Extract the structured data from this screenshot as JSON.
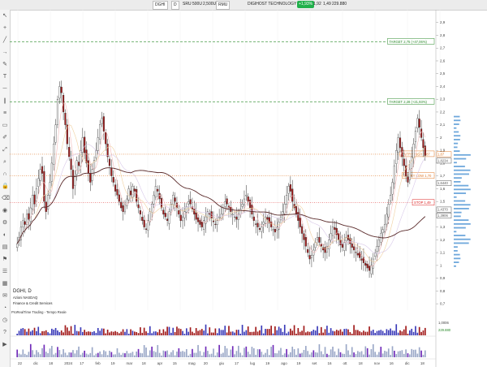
{
  "toolbar_top": {
    "symbol": "DGHI",
    "interval": "D",
    "fields": [
      "SRU",
      "500U",
      "2,500U"
    ],
    "exchange": "RMU",
    "company": "DIGIHOST TECHNOLOGY INC.",
    "change_pct": "+1,93%",
    "quote": [
      "1,92",
      "1,49",
      "229.880"
    ]
  },
  "left_tools": [
    "cursor-icon",
    "crosshair-icon",
    "trend-line-icon",
    "ray-icon",
    "pencil-icon",
    "text-icon",
    "horizontal-line-icon",
    "parallel-channel-icon",
    "fib-icon",
    "rectangle-icon",
    "brush-icon",
    "measure-icon",
    "zoom-icon",
    "magnet-icon",
    "lock-icon",
    "trash-icon",
    "eye-icon",
    "settings-icon",
    "palette-icon",
    "layers-icon",
    "alert-icon",
    "watchlist-icon",
    "calendar-icon",
    "news-icon",
    "pie-icon",
    "clock-icon",
    "help-icon",
    "play-icon"
  ],
  "info": {
    "symbol_line": "DGHI, D",
    "exchange_line": "Azioni NASDAQ",
    "sector_line": "Finance & Credit Services",
    "indicator_line": "ProRealTime Trading - Tempo Reale"
  },
  "levels": [
    {
      "label": "TARGET 2,75 (+47,06%)",
      "value": 2.75,
      "color": "#2a8a2a",
      "style": "dash"
    },
    {
      "label": "TARGET 2,28 (+21,93%)",
      "value": 2.28,
      "color": "#2a8a2a",
      "style": "dash"
    },
    {
      "label": "ENTRY HIGH 1,87",
      "value": 1.87,
      "color": "#e07a2a",
      "style": "dot"
    },
    {
      "label": "ENTRY LOW 1,70",
      "value": 1.7,
      "color": "#e07a2a",
      "style": "dot"
    },
    {
      "label": "STOP 1,49",
      "value": 1.49,
      "color": "#d22",
      "style": "dot"
    }
  ],
  "price_badges": [
    {
      "text": "1,87",
      "value": 1.87,
      "color": "#e07a2a"
    },
    {
      "text": "1,8234",
      "value": 1.82,
      "color": "#555"
    },
    {
      "text": "1,6440",
      "value": 1.644,
      "color": "#555"
    },
    {
      "text": "1,4370",
      "value": 1.437,
      "color": "#555"
    },
    {
      "text": "1,3906",
      "value": 1.39,
      "color": "#555"
    }
  ],
  "chart_data": {
    "type": "candlestick",
    "y_axis": {
      "min": 0.65,
      "max": 3.0,
      "ticks": [
        "2,9",
        "2,8",
        "2,7",
        "2,6",
        "2,5",
        "2,4",
        "2,3",
        "2,2",
        "2,1",
        "2",
        "1,9",
        "1,8",
        "1,7",
        "1,6",
        "1,5",
        "1,4",
        "1,3",
        "1,2",
        "1,1",
        "1",
        "0,9",
        "0,8",
        "0,7"
      ],
      "tick_values": [
        2.9,
        2.8,
        2.7,
        2.6,
        2.5,
        2.4,
        2.3,
        2.2,
        2.1,
        2.0,
        1.9,
        1.8,
        1.7,
        1.6,
        1.5,
        1.4,
        1.3,
        1.2,
        1.1,
        1.0,
        0.9,
        0.8,
        0.7
      ]
    },
    "x_labels": [
      "22",
      "dic",
      "18",
      "2024",
      "17",
      "feb",
      "19",
      "mar",
      "18",
      "apr",
      "15",
      "mag",
      "20",
      "giu",
      "17",
      "lug",
      "19",
      "ago",
      "19",
      "set",
      "16",
      "ott",
      "18",
      "nov",
      "16",
      "dic",
      "18"
    ],
    "price_path": [
      1.17,
      1.22,
      1.3,
      1.35,
      1.32,
      1.4,
      1.36,
      1.45,
      1.55,
      1.48,
      1.6,
      1.68,
      1.75,
      1.72,
      1.5,
      1.42,
      1.55,
      1.65,
      1.8,
      1.95,
      2.1,
      2.3,
      2.4,
      2.35,
      2.2,
      2.1,
      1.95,
      1.85,
      1.75,
      1.6,
      1.7,
      1.82,
      1.78,
      1.9,
      2.0,
      1.88,
      1.8,
      1.72,
      1.65,
      1.75,
      1.82,
      1.9,
      2.0,
      2.1,
      2.15,
      2.05,
      1.95,
      1.85,
      1.78,
      1.7,
      1.65,
      1.58,
      1.55,
      1.5,
      1.45,
      1.42,
      1.48,
      1.52,
      1.6,
      1.55,
      1.62,
      1.58,
      1.5,
      1.45,
      1.4,
      1.35,
      1.3,
      1.28,
      1.35,
      1.42,
      1.48,
      1.55,
      1.62,
      1.58,
      1.52,
      1.45,
      1.4,
      1.38,
      1.35,
      1.42,
      1.48,
      1.55,
      1.5,
      1.45,
      1.4,
      1.35,
      1.38,
      1.42,
      1.46,
      1.5,
      1.48,
      1.44,
      1.4,
      1.36,
      1.34,
      1.32,
      1.3,
      1.35,
      1.38,
      1.42,
      1.4,
      1.37,
      1.34,
      1.32,
      1.35,
      1.38,
      1.4,
      1.45,
      1.5,
      1.48,
      1.45,
      1.42,
      1.4,
      1.38,
      1.36,
      1.4,
      1.44,
      1.48,
      1.52,
      1.55,
      1.5,
      1.45,
      1.4,
      1.35,
      1.32,
      1.3,
      1.28,
      1.3,
      1.34,
      1.38,
      1.36,
      1.33,
      1.3,
      1.28,
      1.26,
      1.3,
      1.34,
      1.38,
      1.42,
      1.48,
      1.55,
      1.62,
      1.58,
      1.5,
      1.45,
      1.4,
      1.35,
      1.3,
      1.25,
      1.2,
      1.15,
      1.1,
      1.05,
      1.08,
      1.12,
      1.18,
      1.22,
      1.18,
      1.15,
      1.12,
      1.1,
      1.15,
      1.2,
      1.25,
      1.3,
      1.28,
      1.24,
      1.2,
      1.16,
      1.14,
      1.18,
      1.22,
      1.2,
      1.17,
      1.14,
      1.12,
      1.1,
      1.08,
      1.06,
      1.04,
      1.02,
      1.0,
      0.98,
      0.96,
      1.0,
      1.05,
      1.1,
      1.15,
      1.2,
      1.25,
      1.28,
      1.32,
      1.4,
      1.48,
      1.55,
      1.65,
      1.78,
      1.9,
      2.0,
      1.92,
      1.85,
      1.78,
      1.7,
      1.65,
      1.75,
      1.85,
      1.95,
      2.05,
      2.15,
      2.08,
      2.0,
      1.92,
      1.86
    ],
    "volume_label": "1,0006",
    "volume_value_label": "229.880",
    "ma_long_label": "MA"
  }
}
